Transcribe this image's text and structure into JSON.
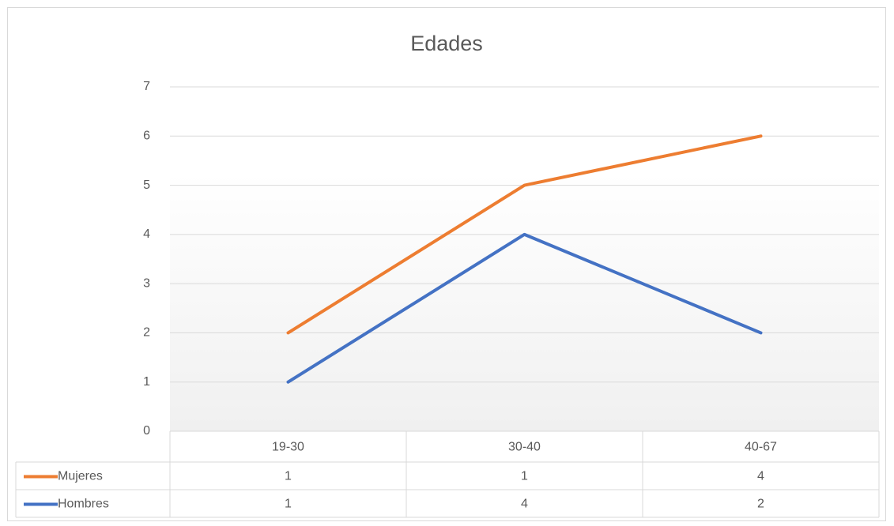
{
  "chart_data": {
    "type": "line",
    "stacked": true,
    "title": "Edades",
    "categories": [
      "19-30",
      "30-40",
      "40-67"
    ],
    "series": [
      {
        "name": "Mujeres",
        "color": "#ed7d31",
        "values": [
          1,
          1,
          4
        ]
      },
      {
        "name": "Hombres",
        "color": "#4472c4",
        "values": [
          1,
          4,
          2
        ]
      }
    ],
    "ylim": [
      0,
      7
    ],
    "yticks": [
      0,
      1,
      2,
      3,
      4,
      5,
      6,
      7
    ],
    "grid": true
  }
}
